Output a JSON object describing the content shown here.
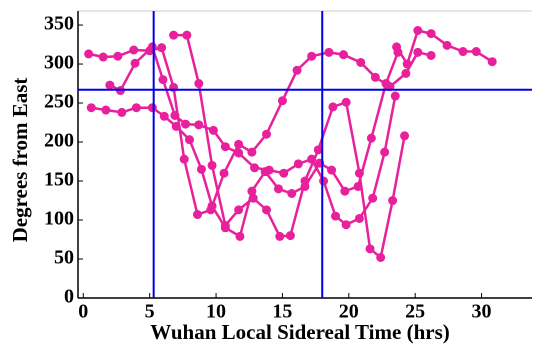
{
  "chart_data": {
    "type": "line",
    "x_label": "Wuhan Local Sidereal Time (hrs)",
    "y_label": "Degrees from East",
    "xlim": [
      -0.4,
      33.8
    ],
    "ylim": [
      0,
      368
    ],
    "xticks": [
      0,
      5,
      10,
      15,
      20,
      25,
      30
    ],
    "yticks": [
      0,
      50,
      100,
      150,
      200,
      250,
      300,
      350
    ],
    "vlines": [
      5.3,
      18.0
    ],
    "hlines": [
      267
    ],
    "ref_color": "#0000e6",
    "series": [
      {
        "color": "#e8209c",
        "x": [
          0.4,
          1.5,
          2.6,
          3.8,
          5.0,
          5.9,
          6.8,
          7.6,
          8.6,
          9.6,
          10.6,
          11.7,
          12.7,
          13.8,
          15.0,
          16.1,
          17.2,
          18.5,
          19.6,
          20.9,
          22.0,
          23.1,
          24.3,
          25.2,
          26.2
        ],
        "values": [
          313,
          309,
          310,
          318,
          317,
          321,
          270,
          178,
          107,
          113,
          160,
          197,
          187,
          210,
          253,
          292,
          310,
          315,
          312,
          302,
          283,
          271,
          288,
          315,
          311
        ]
      },
      {
        "color": "#e8209c",
        "x": [
          0.6,
          1.7,
          2.9,
          4.0,
          5.2,
          6.1,
          7.0,
          8.0,
          8.9,
          9.7,
          10.7,
          11.8,
          12.7,
          13.7,
          14.7,
          15.7,
          16.7,
          17.8,
          18.7,
          19.7,
          20.7,
          21.7,
          22.8,
          23.7
        ],
        "values": [
          244,
          241,
          238,
          244,
          244,
          233,
          220,
          203,
          165,
          118,
          90,
          79,
          137,
          162,
          140,
          134,
          143,
          173,
          164,
          137,
          143,
          205,
          275,
          315
        ]
      },
      {
        "color": "#e8209c",
        "x": [
          2.0,
          2.8,
          3.9,
          5.2,
          6.0,
          6.9,
          7.7,
          8.7,
          9.8,
          10.7,
          11.7,
          12.9,
          14.0,
          15.1,
          16.2,
          17.2,
          18.1,
          19.0,
          19.8,
          20.8,
          21.8,
          22.7,
          23.5
        ],
        "values": [
          273,
          266,
          301,
          322,
          280,
          234,
          223,
          222,
          215,
          194,
          186,
          167,
          164,
          160,
          172,
          178,
          150,
          105,
          94,
          102,
          128,
          187,
          259
        ]
      },
      {
        "color": "#e8209c",
        "x": [
          6.8,
          7.8,
          8.7,
          9.7,
          10.7,
          11.7,
          12.8,
          13.8,
          14.8,
          15.6,
          16.7,
          17.7,
          18.8,
          19.8,
          20.8,
          21.6,
          22.4,
          23.3,
          24.2
        ],
        "values": [
          337,
          337,
          275,
          170,
          93,
          113,
          128,
          113,
          79,
          80,
          150,
          190,
          245,
          251,
          160,
          63,
          52,
          125,
          208
        ]
      },
      {
        "color": "#e8209c",
        "x": [
          23.6,
          24.4,
          25.2,
          26.2,
          27.4,
          28.6,
          29.6,
          30.8
        ],
        "values": [
          322,
          300,
          343,
          339,
          324,
          316,
          316,
          303
        ]
      }
    ]
  }
}
